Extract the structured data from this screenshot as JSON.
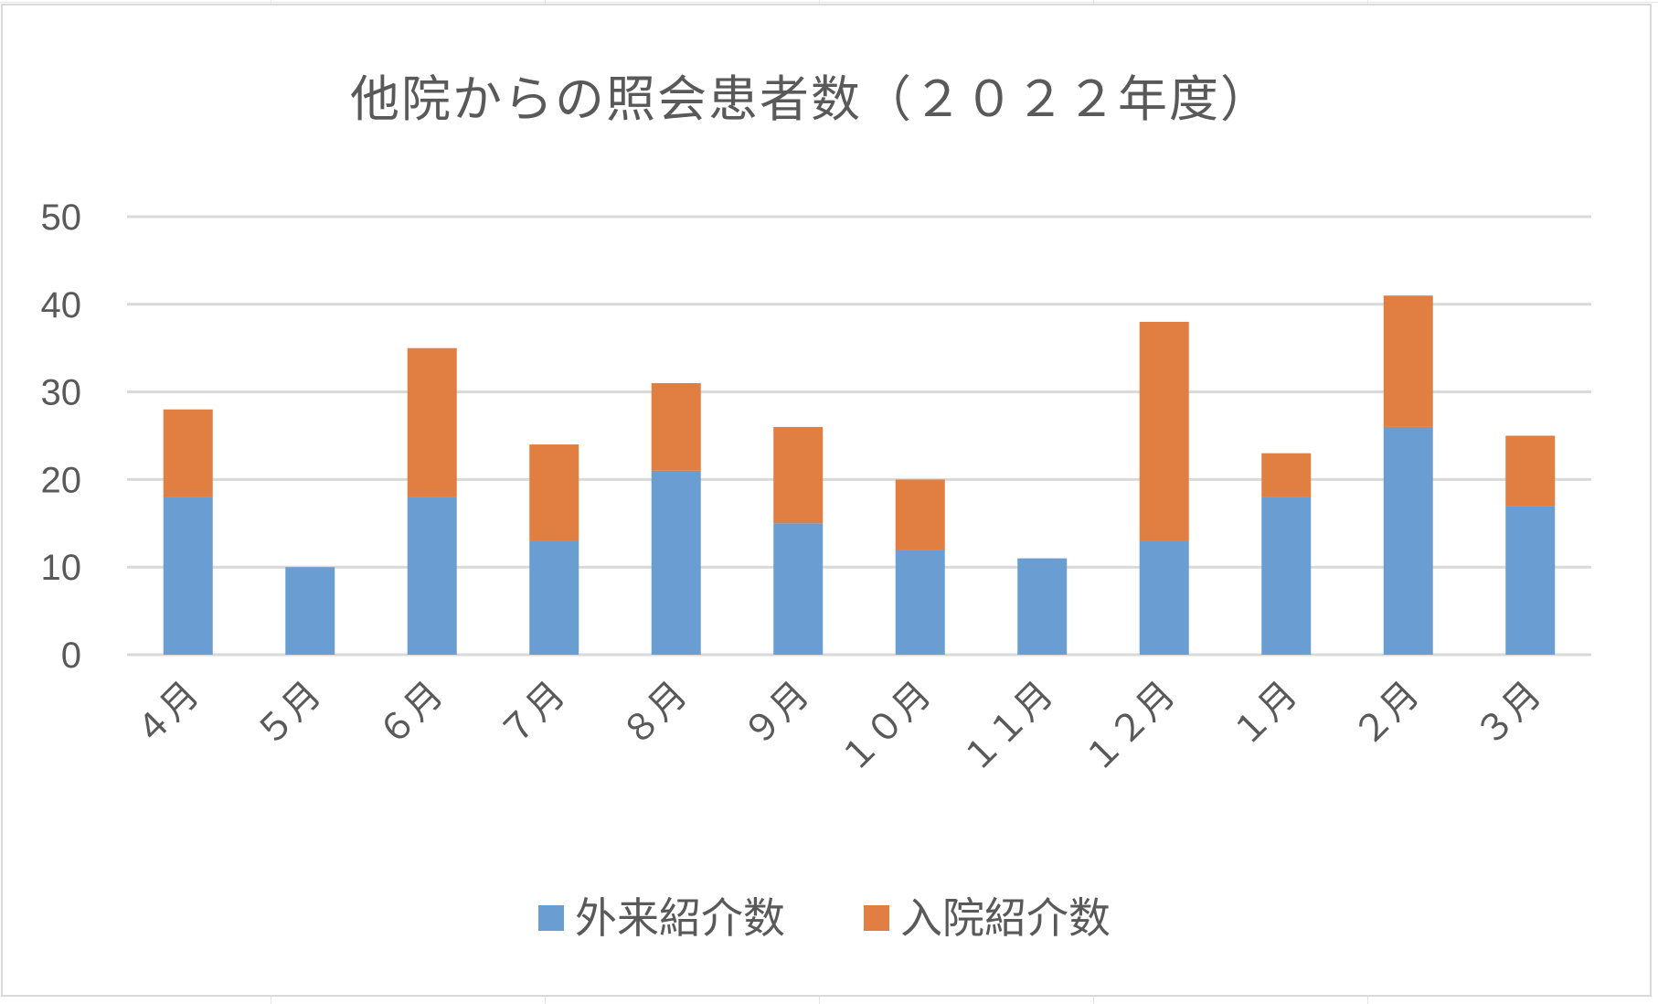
{
  "chart_data": {
    "type": "bar",
    "stacked": true,
    "title": "他院からの照会患者数（２０２２年度）",
    "categories": [
      "４月",
      "５月",
      "６月",
      "７月",
      "８月",
      "９月",
      "１０月",
      "１１月",
      "１２月",
      "１月",
      "２月",
      "３月"
    ],
    "series": [
      {
        "name": "外来紹介数",
        "color": "#6a9ed3",
        "values": [
          18,
          10,
          18,
          13,
          21,
          15,
          12,
          11,
          13,
          18,
          26,
          17
        ]
      },
      {
        "name": "入院紹介数",
        "color": "#e07f41",
        "values": [
          10,
          0,
          17,
          11,
          10,
          11,
          8,
          0,
          25,
          5,
          15,
          8
        ]
      }
    ],
    "ylim": [
      0,
      50
    ],
    "yticks": [
      "0",
      "10",
      "20",
      "30",
      "40",
      "50"
    ],
    "grid": true,
    "legend_position": "bottom",
    "xlabel": "",
    "ylabel": ""
  }
}
